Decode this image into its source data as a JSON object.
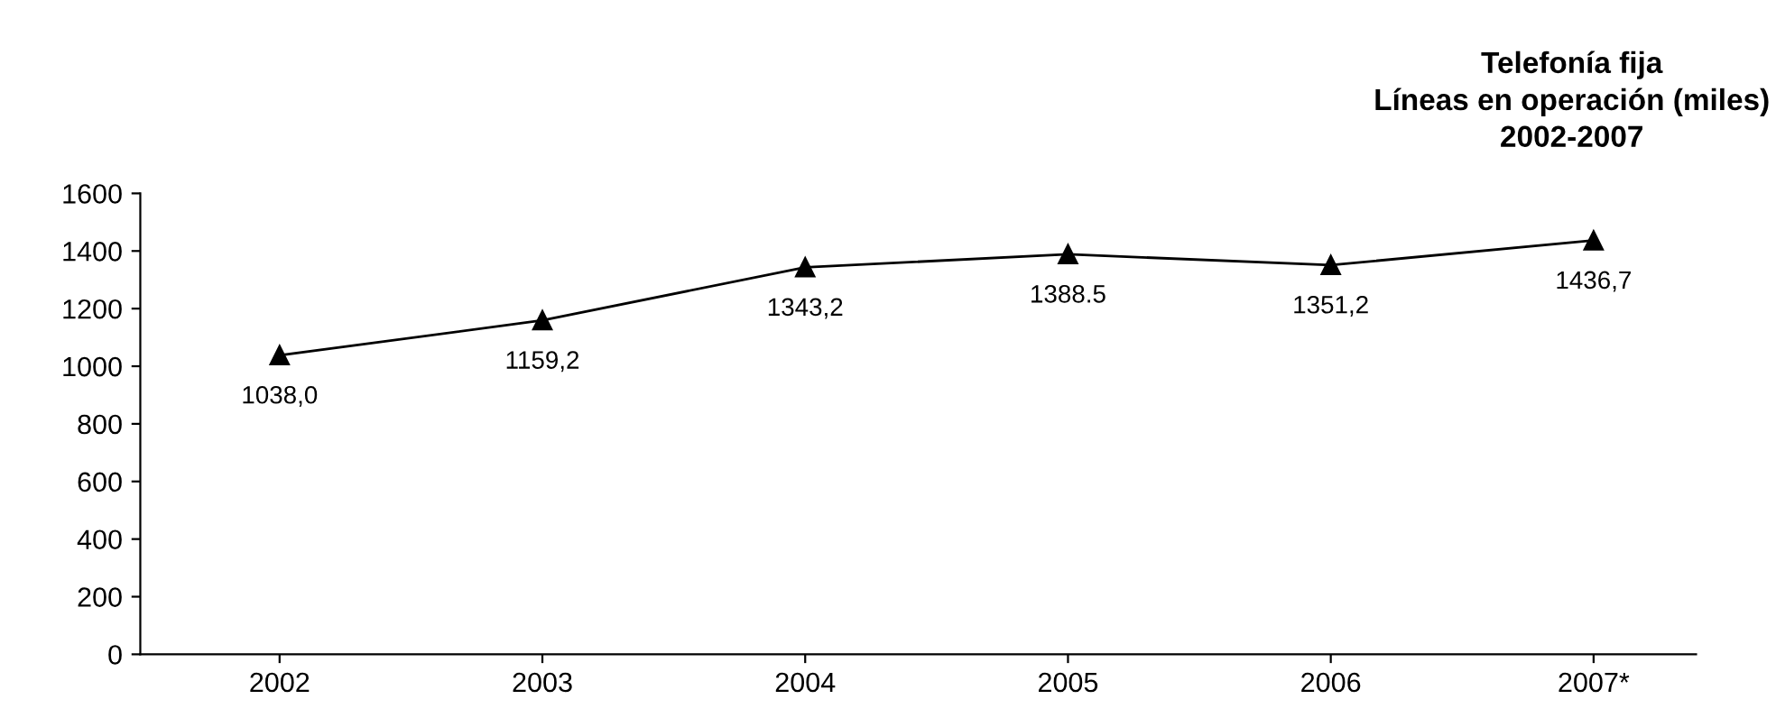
{
  "chart_data": {
    "type": "line",
    "title": "Telefonía fija\nLíneas en operación (miles)\n2002-2007",
    "categories": [
      "2002",
      "2003",
      "2004",
      "2005",
      "2006",
      "2007*"
    ],
    "series": [
      {
        "color": "#000000",
        "values": [
          1038.0,
          1159.2,
          1343.2,
          1388.5,
          1351.2,
          1436.7
        ],
        "value_labels": [
          "1038,0",
          "1159,2",
          "1343,2",
          "1388.5",
          "1351,2",
          "1436,7"
        ]
      }
    ],
    "ylim": [
      0,
      1600
    ],
    "yticks": [
      0,
      200,
      400,
      600,
      800,
      1000,
      1200,
      1400,
      1600
    ],
    "marker": "triangle",
    "line_style": "solid",
    "grid": false,
    "legend": false
  }
}
